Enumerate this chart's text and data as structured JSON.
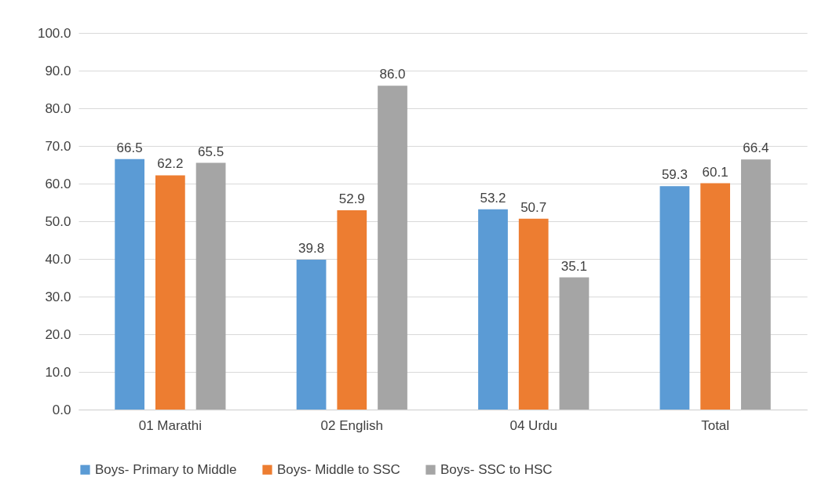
{
  "chart_data": {
    "type": "bar",
    "categories": [
      "01 Marathi",
      "02 English",
      "04 Urdu",
      "Total"
    ],
    "series": [
      {
        "name": "Boys- Primary to Middle",
        "color": "#5b9bd5",
        "values": [
          66.5,
          39.8,
          53.2,
          59.3
        ],
        "value_labels": [
          "66.5",
          "39.8",
          "53.2",
          "59.3"
        ]
      },
      {
        "name": "Boys- Middle to SSC",
        "color": "#ed7d31",
        "values": [
          62.2,
          52.9,
          50.7,
          60.1
        ],
        "value_labels": [
          "62.2",
          "52.9",
          "50.7",
          "60.1"
        ]
      },
      {
        "name": "Boys- SSC to HSC",
        "color": "#a5a5a5",
        "values": [
          65.5,
          86.0,
          35.1,
          66.4
        ],
        "value_labels": [
          "65.5",
          "86.0",
          "35.1",
          "66.4"
        ]
      }
    ],
    "ylim": [
      0,
      100
    ],
    "yticks": [
      {
        "value": 0,
        "label": "0.0"
      },
      {
        "value": 10,
        "label": "10.0"
      },
      {
        "value": 20,
        "label": "20.0"
      },
      {
        "value": 30,
        "label": "30.0"
      },
      {
        "value": 40,
        "label": "40.0"
      },
      {
        "value": 50,
        "label": "50.0"
      },
      {
        "value": 60,
        "label": "60.0"
      },
      {
        "value": 70,
        "label": "70.0"
      },
      {
        "value": 80,
        "label": "80.0"
      },
      {
        "value": 90,
        "label": "90.0"
      },
      {
        "value": 100,
        "label": "100.0"
      }
    ],
    "grid": "y",
    "legend": "bottom"
  }
}
